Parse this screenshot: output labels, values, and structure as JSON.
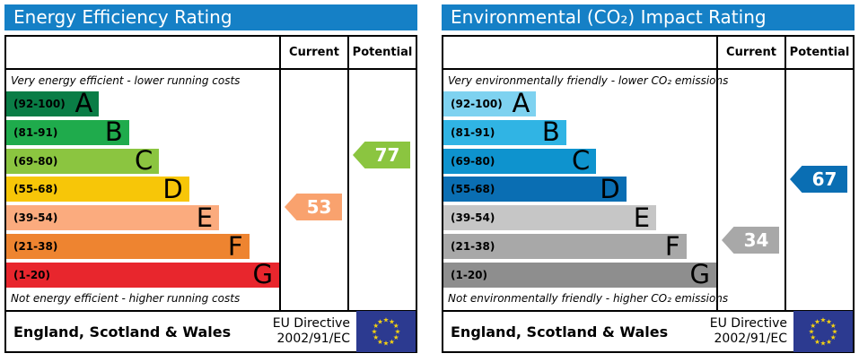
{
  "panels": [
    {
      "title": "Energy Efficiency Rating",
      "header_bg": "#1580c6",
      "columns": {
        "current": "Current",
        "potential": "Potential"
      },
      "top_caption": "Very energy efficient - lower running costs",
      "bottom_caption": "Not energy efficient - higher running costs",
      "bands": [
        {
          "letter": "A",
          "range": "(92-100)",
          "lo": 92,
          "hi": 100,
          "color": "#0a7d46"
        },
        {
          "letter": "B",
          "range": "(81-91)",
          "lo": 81,
          "hi": 91,
          "color": "#1fab4c"
        },
        {
          "letter": "C",
          "range": "(69-80)",
          "lo": 69,
          "hi": 80,
          "color": "#8bc540"
        },
        {
          "letter": "D",
          "range": "(55-68)",
          "lo": 55,
          "hi": 68,
          "color": "#f7c608"
        },
        {
          "letter": "E",
          "range": "(39-54)",
          "lo": 39,
          "hi": 54,
          "color": "#fbab7e"
        },
        {
          "letter": "F",
          "range": "(21-38)",
          "lo": 21,
          "hi": 38,
          "color": "#ee8430"
        },
        {
          "letter": "G",
          "range": "(1-20)",
          "lo": 1,
          "hi": 20,
          "color": "#e8262d"
        }
      ],
      "current": {
        "value": 53,
        "color": "#f9a26e"
      },
      "potential": {
        "value": 77,
        "color": "#8bc540"
      },
      "footer": {
        "region": "England, Scotland & Wales",
        "directive_line1": "EU Directive",
        "directive_line2": "2002/91/EC"
      }
    },
    {
      "title": "Environmental (CO₂) Impact Rating",
      "header_bg": "#1580c6",
      "columns": {
        "current": "Current",
        "potential": "Potential"
      },
      "top_caption": "Very environmentally friendly - lower CO₂ emissions",
      "bottom_caption": "Not environmentally friendly - higher CO₂ emissions",
      "bands": [
        {
          "letter": "A",
          "range": "(92-100)",
          "lo": 92,
          "hi": 100,
          "color": "#7ed2f0"
        },
        {
          "letter": "B",
          "range": "(81-91)",
          "lo": 81,
          "hi": 91,
          "color": "#30b4e4"
        },
        {
          "letter": "C",
          "range": "(69-80)",
          "lo": 69,
          "hi": 80,
          "color": "#0e93ce"
        },
        {
          "letter": "D",
          "range": "(55-68)",
          "lo": 55,
          "hi": 68,
          "color": "#0a6eb3"
        },
        {
          "letter": "E",
          "range": "(39-54)",
          "lo": 39,
          "hi": 54,
          "color": "#c6c6c6"
        },
        {
          "letter": "F",
          "range": "(21-38)",
          "lo": 21,
          "hi": 38,
          "color": "#a8a8a8"
        },
        {
          "letter": "G",
          "range": "(1-20)",
          "lo": 1,
          "hi": 20,
          "color": "#8e8e8e"
        }
      ],
      "current": {
        "value": 34,
        "color": "#a8a8a8"
      },
      "potential": {
        "value": 67,
        "color": "#0a6eb3"
      },
      "footer": {
        "region": "England, Scotland & Wales",
        "directive_line1": "EU Directive",
        "directive_line2": "2002/91/EC"
      }
    }
  ],
  "flag": {
    "bg": "#2c3a90",
    "star_color": "#f5d211"
  },
  "chart_data": [
    {
      "type": "bar",
      "title": "Energy Efficiency Rating",
      "annotation_top": "Very energy efficient - lower running costs",
      "annotation_bottom": "Not energy efficient - higher running costs",
      "categories": [
        "A",
        "B",
        "C",
        "D",
        "E",
        "F",
        "G"
      ],
      "band_ranges": [
        "92-100",
        "81-91",
        "69-80",
        "55-68",
        "39-54",
        "21-38",
        "1-20"
      ],
      "band_colors": [
        "#0a7d46",
        "#1fab4c",
        "#8bc540",
        "#f7c608",
        "#fbab7e",
        "#ee8430",
        "#e8262d"
      ],
      "scale": [
        1,
        100
      ],
      "series": [
        {
          "name": "Current",
          "value": 53,
          "band": "E"
        },
        {
          "name": "Potential",
          "value": 77,
          "band": "C"
        }
      ],
      "footer": "England, Scotland & Wales — EU Directive 2002/91/EC"
    },
    {
      "type": "bar",
      "title": "Environmental (CO₂) Impact Rating",
      "annotation_top": "Very environmentally friendly - lower CO₂ emissions",
      "annotation_bottom": "Not environmentally friendly - higher CO₂ emissions",
      "categories": [
        "A",
        "B",
        "C",
        "D",
        "E",
        "F",
        "G"
      ],
      "band_ranges": [
        "92-100",
        "81-91",
        "69-80",
        "55-68",
        "39-54",
        "21-38",
        "1-20"
      ],
      "band_colors": [
        "#7ed2f0",
        "#30b4e4",
        "#0e93ce",
        "#0a6eb3",
        "#c6c6c6",
        "#a8a8a8",
        "#8e8e8e"
      ],
      "scale": [
        1,
        100
      ],
      "series": [
        {
          "name": "Current",
          "value": 34,
          "band": "F"
        },
        {
          "name": "Potential",
          "value": 67,
          "band": "D"
        }
      ],
      "footer": "England, Scotland & Wales — EU Directive 2002/91/EC"
    }
  ]
}
